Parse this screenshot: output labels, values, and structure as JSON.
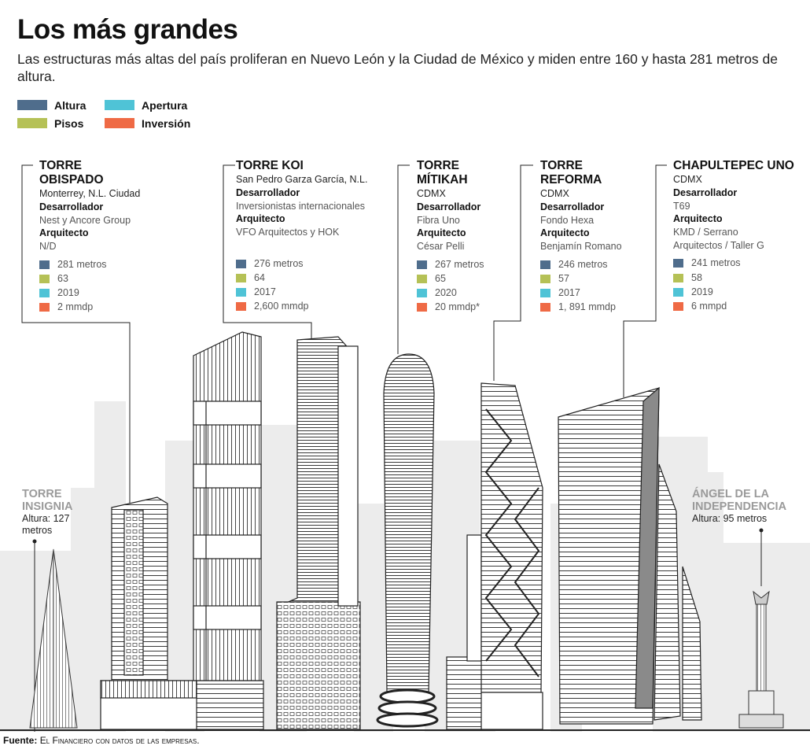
{
  "header": {
    "title": "Los más grandes",
    "subtitle": "Las estructuras más altas del país proliferan en Nuevo León y la Ciudad de México y miden entre 160 y hasta 281 metros de altura."
  },
  "legend": [
    {
      "label": "Altura",
      "color": "#4f6d8c"
    },
    {
      "label": "Pisos",
      "color": "#b5c156"
    },
    {
      "label": "Apertura",
      "color": "#4fc3d6"
    },
    {
      "label": "Inversión",
      "color": "#ef6a45"
    }
  ],
  "towers": [
    {
      "name_lines": [
        "TORRE",
        "OBISPADO"
      ],
      "location": "Monterrey, N.L. Ciudad",
      "developer_label": "Desarrollador",
      "developer": "Nest y Ancore Group",
      "architect_label": "Arquitecto",
      "architect_lines": [
        "N/D"
      ],
      "height": "281 metros",
      "floors": "63",
      "year": "2019",
      "investment": "2 mmdp"
    },
    {
      "name_lines": [
        "TORRE KOI"
      ],
      "location": "San Pedro Garza García, N.L.",
      "developer_label": "Desarrollador",
      "developer": "Inversionistas internacionales",
      "architect_label": "Arquitecto",
      "architect_lines": [
        "VFO Arquitectos y HOK"
      ],
      "height": "276 metros",
      "floors": "64",
      "year": "2017",
      "investment": "2,600 mmdp"
    },
    {
      "name_lines": [
        "TORRE",
        "MÍTIKAH"
      ],
      "location": "CDMX",
      "developer_label": "Desarrollador",
      "developer": "Fibra Uno",
      "architect_label": "Arquitecto",
      "architect_lines": [
        "César Pelli"
      ],
      "height": "267 metros",
      "floors": "65",
      "year": "2020",
      "investment": "20 mmdp*"
    },
    {
      "name_lines": [
        "TORRE",
        "REFORMA"
      ],
      "location": "CDMX",
      "developer_label": "Desarrollador",
      "developer": "Fondo Hexa",
      "architect_label": "Arquitecto",
      "architect_lines": [
        "Benjamín Romano"
      ],
      "height": "246 metros",
      "floors": "57",
      "year": "2017",
      "investment": "1, 891 mmdp"
    },
    {
      "name_lines": [
        "CHAPULTEPEC UNO"
      ],
      "location": "CDMX",
      "developer_label": "Desarrollador",
      "developer": "T69",
      "architect_label": "Arquitecto",
      "architect_lines": [
        "KMD / Serrano",
        "Arquitectos / Taller G"
      ],
      "height": "241 metros",
      "floors": "58",
      "year": "2019",
      "investment": "6 mmpd"
    }
  ],
  "side_towers": {
    "insignia": {
      "name_lines": [
        "TORRE",
        "INSIGNIA"
      ],
      "height_lines": [
        "Altura: 127",
        "metros"
      ]
    },
    "angel": {
      "name_lines": [
        "ÁNGEL DE LA",
        "INDEPENDENCIA"
      ],
      "height_lines": [
        "Altura: 95 metros"
      ]
    }
  },
  "source": {
    "label": "Fuente:",
    "text": "El Financiero con datos de las empresas."
  }
}
